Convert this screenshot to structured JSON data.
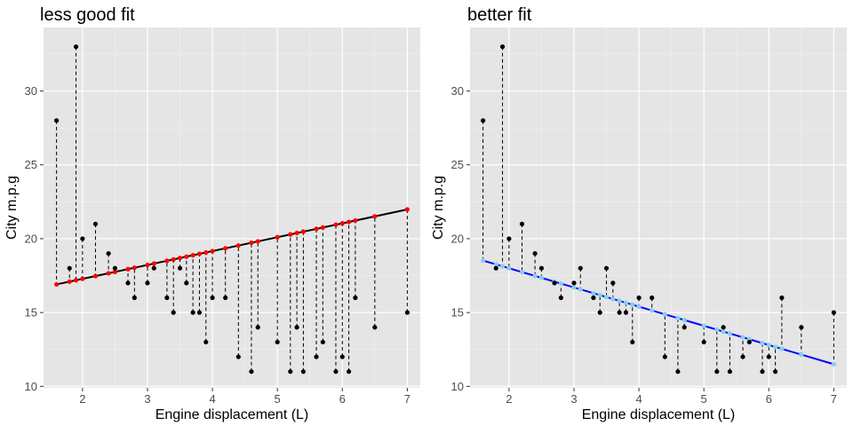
{
  "chart_data": [
    {
      "type": "scatter",
      "title": "less good fit",
      "xlabel": "Engine displacement (L)",
      "ylabel": "City m.p.g",
      "xlim": [
        1.4,
        7.2
      ],
      "ylim": [
        9.9,
        34.3
      ],
      "x_ticks": [
        2,
        3,
        4,
        5,
        6,
        7
      ],
      "y_ticks": [
        10,
        15,
        20,
        25,
        30
      ],
      "grid": true,
      "point_color": "#000000",
      "fitted_color": "#ff0000",
      "line_color": "#000000",
      "residual_style": "dashed",
      "fit_line": {
        "intercept": 15.4,
        "slope": 0.94
      },
      "points": [
        {
          "x": 1.6,
          "y": 28
        },
        {
          "x": 1.8,
          "y": 18
        },
        {
          "x": 1.9,
          "y": 33
        },
        {
          "x": 2.0,
          "y": 20
        },
        {
          "x": 2.2,
          "y": 21
        },
        {
          "x": 2.4,
          "y": 19
        },
        {
          "x": 2.5,
          "y": 18
        },
        {
          "x": 2.7,
          "y": 17
        },
        {
          "x": 2.8,
          "y": 16
        },
        {
          "x": 3.0,
          "y": 17
        },
        {
          "x": 3.1,
          "y": 18
        },
        {
          "x": 3.3,
          "y": 16
        },
        {
          "x": 3.4,
          "y": 15
        },
        {
          "x": 3.5,
          "y": 18
        },
        {
          "x": 3.6,
          "y": 17
        },
        {
          "x": 3.7,
          "y": 15
        },
        {
          "x": 3.8,
          "y": 15
        },
        {
          "x": 3.9,
          "y": 13
        },
        {
          "x": 4.0,
          "y": 16
        },
        {
          "x": 4.2,
          "y": 16
        },
        {
          "x": 4.4,
          "y": 12
        },
        {
          "x": 4.6,
          "y": 11
        },
        {
          "x": 4.7,
          "y": 14
        },
        {
          "x": 5.0,
          "y": 13
        },
        {
          "x": 5.2,
          "y": 11
        },
        {
          "x": 5.3,
          "y": 14
        },
        {
          "x": 5.4,
          "y": 11
        },
        {
          "x": 5.6,
          "y": 12
        },
        {
          "x": 5.7,
          "y": 13
        },
        {
          "x": 5.9,
          "y": 11
        },
        {
          "x": 6.0,
          "y": 12
        },
        {
          "x": 6.1,
          "y": 11
        },
        {
          "x": 6.2,
          "y": 16
        },
        {
          "x": 6.5,
          "y": 14
        },
        {
          "x": 7.0,
          "y": 15
        }
      ]
    },
    {
      "type": "scatter",
      "title": "better fit",
      "xlabel": "Engine displacement (L)",
      "ylabel": "City m.p.g",
      "xlim": [
        1.4,
        7.2
      ],
      "ylim": [
        9.9,
        34.3
      ],
      "x_ticks": [
        2,
        3,
        4,
        5,
        6,
        7
      ],
      "y_ticks": [
        10,
        15,
        20,
        25,
        30
      ],
      "grid": true,
      "point_color": "#000000",
      "fitted_color": "#87ceeb",
      "line_color": "#0000ff",
      "residual_style": "dashed",
      "fit_line": {
        "intercept": 20.6,
        "slope": -1.3
      },
      "points": [
        {
          "x": 1.6,
          "y": 28
        },
        {
          "x": 1.8,
          "y": 18
        },
        {
          "x": 1.9,
          "y": 33
        },
        {
          "x": 2.0,
          "y": 20
        },
        {
          "x": 2.2,
          "y": 21
        },
        {
          "x": 2.4,
          "y": 19
        },
        {
          "x": 2.5,
          "y": 18
        },
        {
          "x": 2.7,
          "y": 17
        },
        {
          "x": 2.8,
          "y": 16
        },
        {
          "x": 3.0,
          "y": 17
        },
        {
          "x": 3.1,
          "y": 18
        },
        {
          "x": 3.3,
          "y": 16
        },
        {
          "x": 3.4,
          "y": 15
        },
        {
          "x": 3.5,
          "y": 18
        },
        {
          "x": 3.6,
          "y": 17
        },
        {
          "x": 3.7,
          "y": 15
        },
        {
          "x": 3.8,
          "y": 15
        },
        {
          "x": 3.9,
          "y": 13
        },
        {
          "x": 4.0,
          "y": 16
        },
        {
          "x": 4.2,
          "y": 16
        },
        {
          "x": 4.4,
          "y": 12
        },
        {
          "x": 4.6,
          "y": 11
        },
        {
          "x": 4.7,
          "y": 14
        },
        {
          "x": 5.0,
          "y": 13
        },
        {
          "x": 5.2,
          "y": 11
        },
        {
          "x": 5.3,
          "y": 14
        },
        {
          "x": 5.4,
          "y": 11
        },
        {
          "x": 5.6,
          "y": 12
        },
        {
          "x": 5.7,
          "y": 13
        },
        {
          "x": 5.9,
          "y": 11
        },
        {
          "x": 6.0,
          "y": 12
        },
        {
          "x": 6.1,
          "y": 11
        },
        {
          "x": 6.2,
          "y": 16
        },
        {
          "x": 6.5,
          "y": 14
        },
        {
          "x": 7.0,
          "y": 15
        }
      ]
    }
  ]
}
